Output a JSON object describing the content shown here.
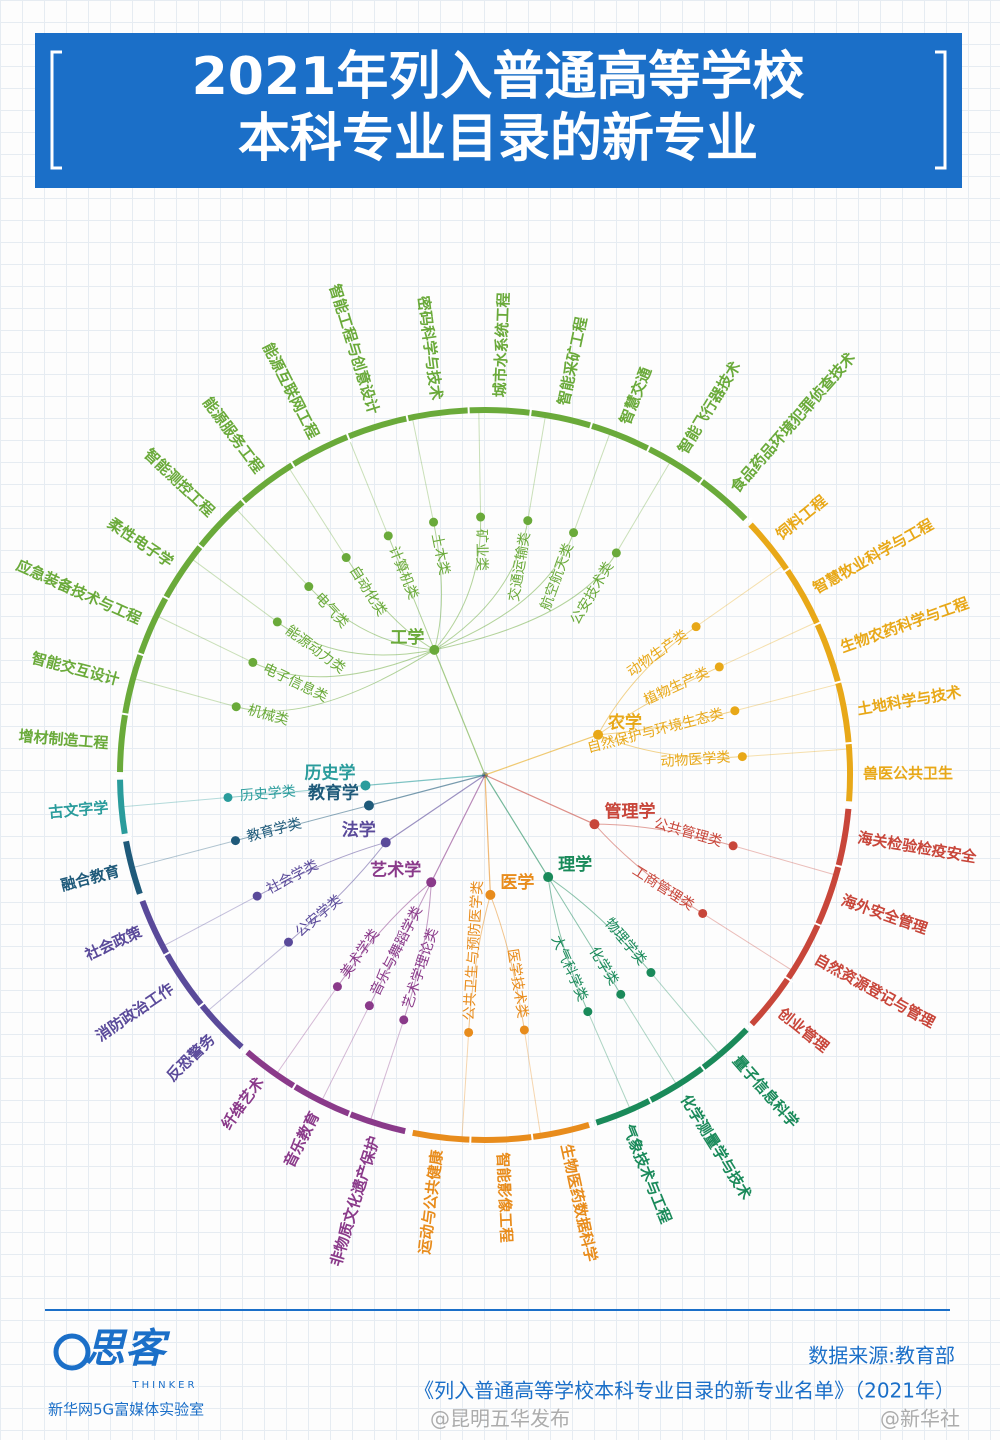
{
  "header": {
    "title": [
      "2021年列入普通高等学校",
      "本科专业目录的新专业"
    ]
  },
  "root": {
    "branches": [
      {
        "name": "历史学",
        "color": "#2a9c9c",
        "classes": [
          "历史学类"
        ],
        "majors": [
          "古文字学"
        ]
      },
      {
        "name": "工学",
        "color": "#6aaa3a",
        "classes": [
          "机械类",
          "电子信息类",
          "能源动力类",
          "电气类",
          "自动化类",
          "计算机类",
          "土木类",
          "矿业类",
          "交通运输类",
          "航空航天类",
          "公安技术类"
        ],
        "majors": [
          "增材制造工程",
          "智能交互设计",
          "应急装备技术与工程",
          "柔性电子学",
          "智能测控工程",
          "能源服务工程",
          "能源互联网工程",
          "智能工程与创意设计",
          "密码科学与技术",
          "城市水系统工程",
          "智能采矿工程",
          "智慧交通",
          "智能飞行器技术",
          "食品药品环境犯罪侦查技术"
        ]
      },
      {
        "name": "农学",
        "color": "#e8a818",
        "classes": [
          "动物生产类",
          "植物生产类",
          "自然保护与环境生态类",
          "动物医学类"
        ],
        "majors": [
          "饲料工程",
          "智慧牧业科学与工程",
          "生物农药科学与工程",
          "土地科学与技术",
          "兽医公共卫生"
        ]
      },
      {
        "name": "管理学",
        "color": "#c8463a",
        "classes": [
          "公共管理类",
          "工商管理类"
        ],
        "majors": [
          "海关检验检疫安全",
          "海外安全管理",
          "自然资源登记与管理",
          "创业管理"
        ]
      },
      {
        "name": "理学",
        "color": "#1a8a5a",
        "classes": [
          "物理学类",
          "化学类",
          "大气科学类"
        ],
        "majors": [
          "量子信息科学",
          "化学测量学与技术",
          "气象技术与工程"
        ]
      },
      {
        "name": "医学",
        "color": "#e88c1c",
        "classes": [
          "医学技术类",
          "公共卫生与预防医学类"
        ],
        "majors": [
          "生物医药数据科学",
          "智能影像工程",
          "运动与公共健康"
        ]
      },
      {
        "name": "艺术学",
        "color": "#8a3a8a",
        "classes": [
          "艺术学理论类",
          "音乐与舞蹈学类",
          "美术学类"
        ],
        "majors": [
          "非物质文化遗产保护",
          "音乐教育",
          "纤维艺术"
        ]
      },
      {
        "name": "法学",
        "color": "#5a4a9a",
        "classes": [
          "公安学类",
          "社会学类"
        ],
        "majors": [
          "反恐警务",
          "消防政治工作",
          "社会政策"
        ]
      },
      {
        "name": "教育学",
        "color": "#1f5a7a",
        "classes": [
          "教育学类"
        ],
        "majors": [
          "融合教育"
        ]
      }
    ]
  },
  "footer": {
    "logo": "思客",
    "logo_sub": "THINKER",
    "lab": "新华网5G富媒体实验室",
    "source": "数据来源:教育部",
    "document": "《列入普通高等学校本科专业目录的新专业名单》（2021年）",
    "watermarks": [
      "@昆明五华发布",
      "@新华社"
    ]
  }
}
